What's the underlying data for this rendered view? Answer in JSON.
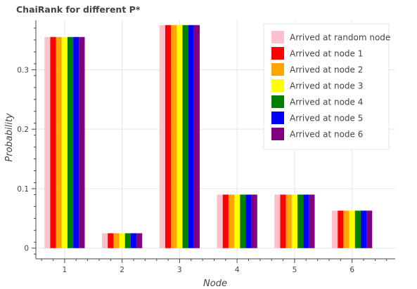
{
  "chart_data": {
    "type": "bar",
    "title": "ChaiRank for different P*",
    "xlabel": "Node",
    "ylabel": "Probability",
    "categories": [
      "1",
      "2",
      "3",
      "4",
      "5",
      "6"
    ],
    "ylim": [
      -0.018,
      0.383
    ],
    "yticks": [
      0,
      0.1,
      0.2,
      0.3
    ],
    "ytick_labels": [
      "0",
      "0.1",
      "0.2",
      "0.3"
    ],
    "grid": true,
    "legend_position": "top-right",
    "series": [
      {
        "name": "Arrived at random node",
        "color": "#FFC0CB",
        "values": [
          0.355,
          0.025,
          0.375,
          0.09,
          0.09,
          0.063
        ]
      },
      {
        "name": "Arrived at node 1",
        "color": "#FF0000",
        "values": [
          0.355,
          0.025,
          0.375,
          0.09,
          0.09,
          0.063
        ]
      },
      {
        "name": "Arrived at node 2",
        "color": "#FFA500",
        "values": [
          0.355,
          0.025,
          0.375,
          0.09,
          0.09,
          0.063
        ]
      },
      {
        "name": "Arrived at node 3",
        "color": "#FFFF00",
        "values": [
          0.355,
          0.025,
          0.375,
          0.09,
          0.09,
          0.063
        ]
      },
      {
        "name": "Arrived at node 4",
        "color": "#008000",
        "values": [
          0.355,
          0.025,
          0.375,
          0.09,
          0.09,
          0.063
        ]
      },
      {
        "name": "Arrived at node 5",
        "color": "#0000FF",
        "values": [
          0.355,
          0.025,
          0.375,
          0.09,
          0.09,
          0.063
        ]
      },
      {
        "name": "Arrived at node 6",
        "color": "#800080",
        "values": [
          0.355,
          0.025,
          0.375,
          0.09,
          0.09,
          0.063
        ]
      }
    ]
  }
}
